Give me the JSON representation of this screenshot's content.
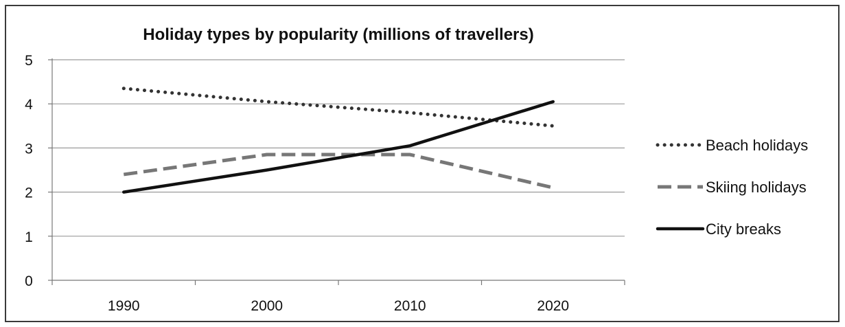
{
  "chart_data": {
    "type": "line",
    "title": "Holiday types by popularity (millions of travellers)",
    "xlabel": "",
    "ylabel": "",
    "categories": [
      "1990",
      "2000",
      "2010",
      "2020"
    ],
    "ylim": [
      0,
      5
    ],
    "yticks": [
      "0",
      "1",
      "2",
      "3",
      "4",
      "5"
    ],
    "grid": true,
    "legend_position": "right",
    "series": [
      {
        "name": "Beach holidays",
        "values": [
          4.35,
          4.05,
          3.8,
          3.5
        ],
        "style": "dotted",
        "color": "#333333"
      },
      {
        "name": "Skiing holidays",
        "values": [
          2.4,
          2.85,
          2.85,
          2.1
        ],
        "style": "dashed",
        "color": "#777777"
      },
      {
        "name": "City breaks",
        "values": [
          2.0,
          2.5,
          3.05,
          4.05
        ],
        "style": "solid",
        "color": "#111111"
      }
    ]
  }
}
